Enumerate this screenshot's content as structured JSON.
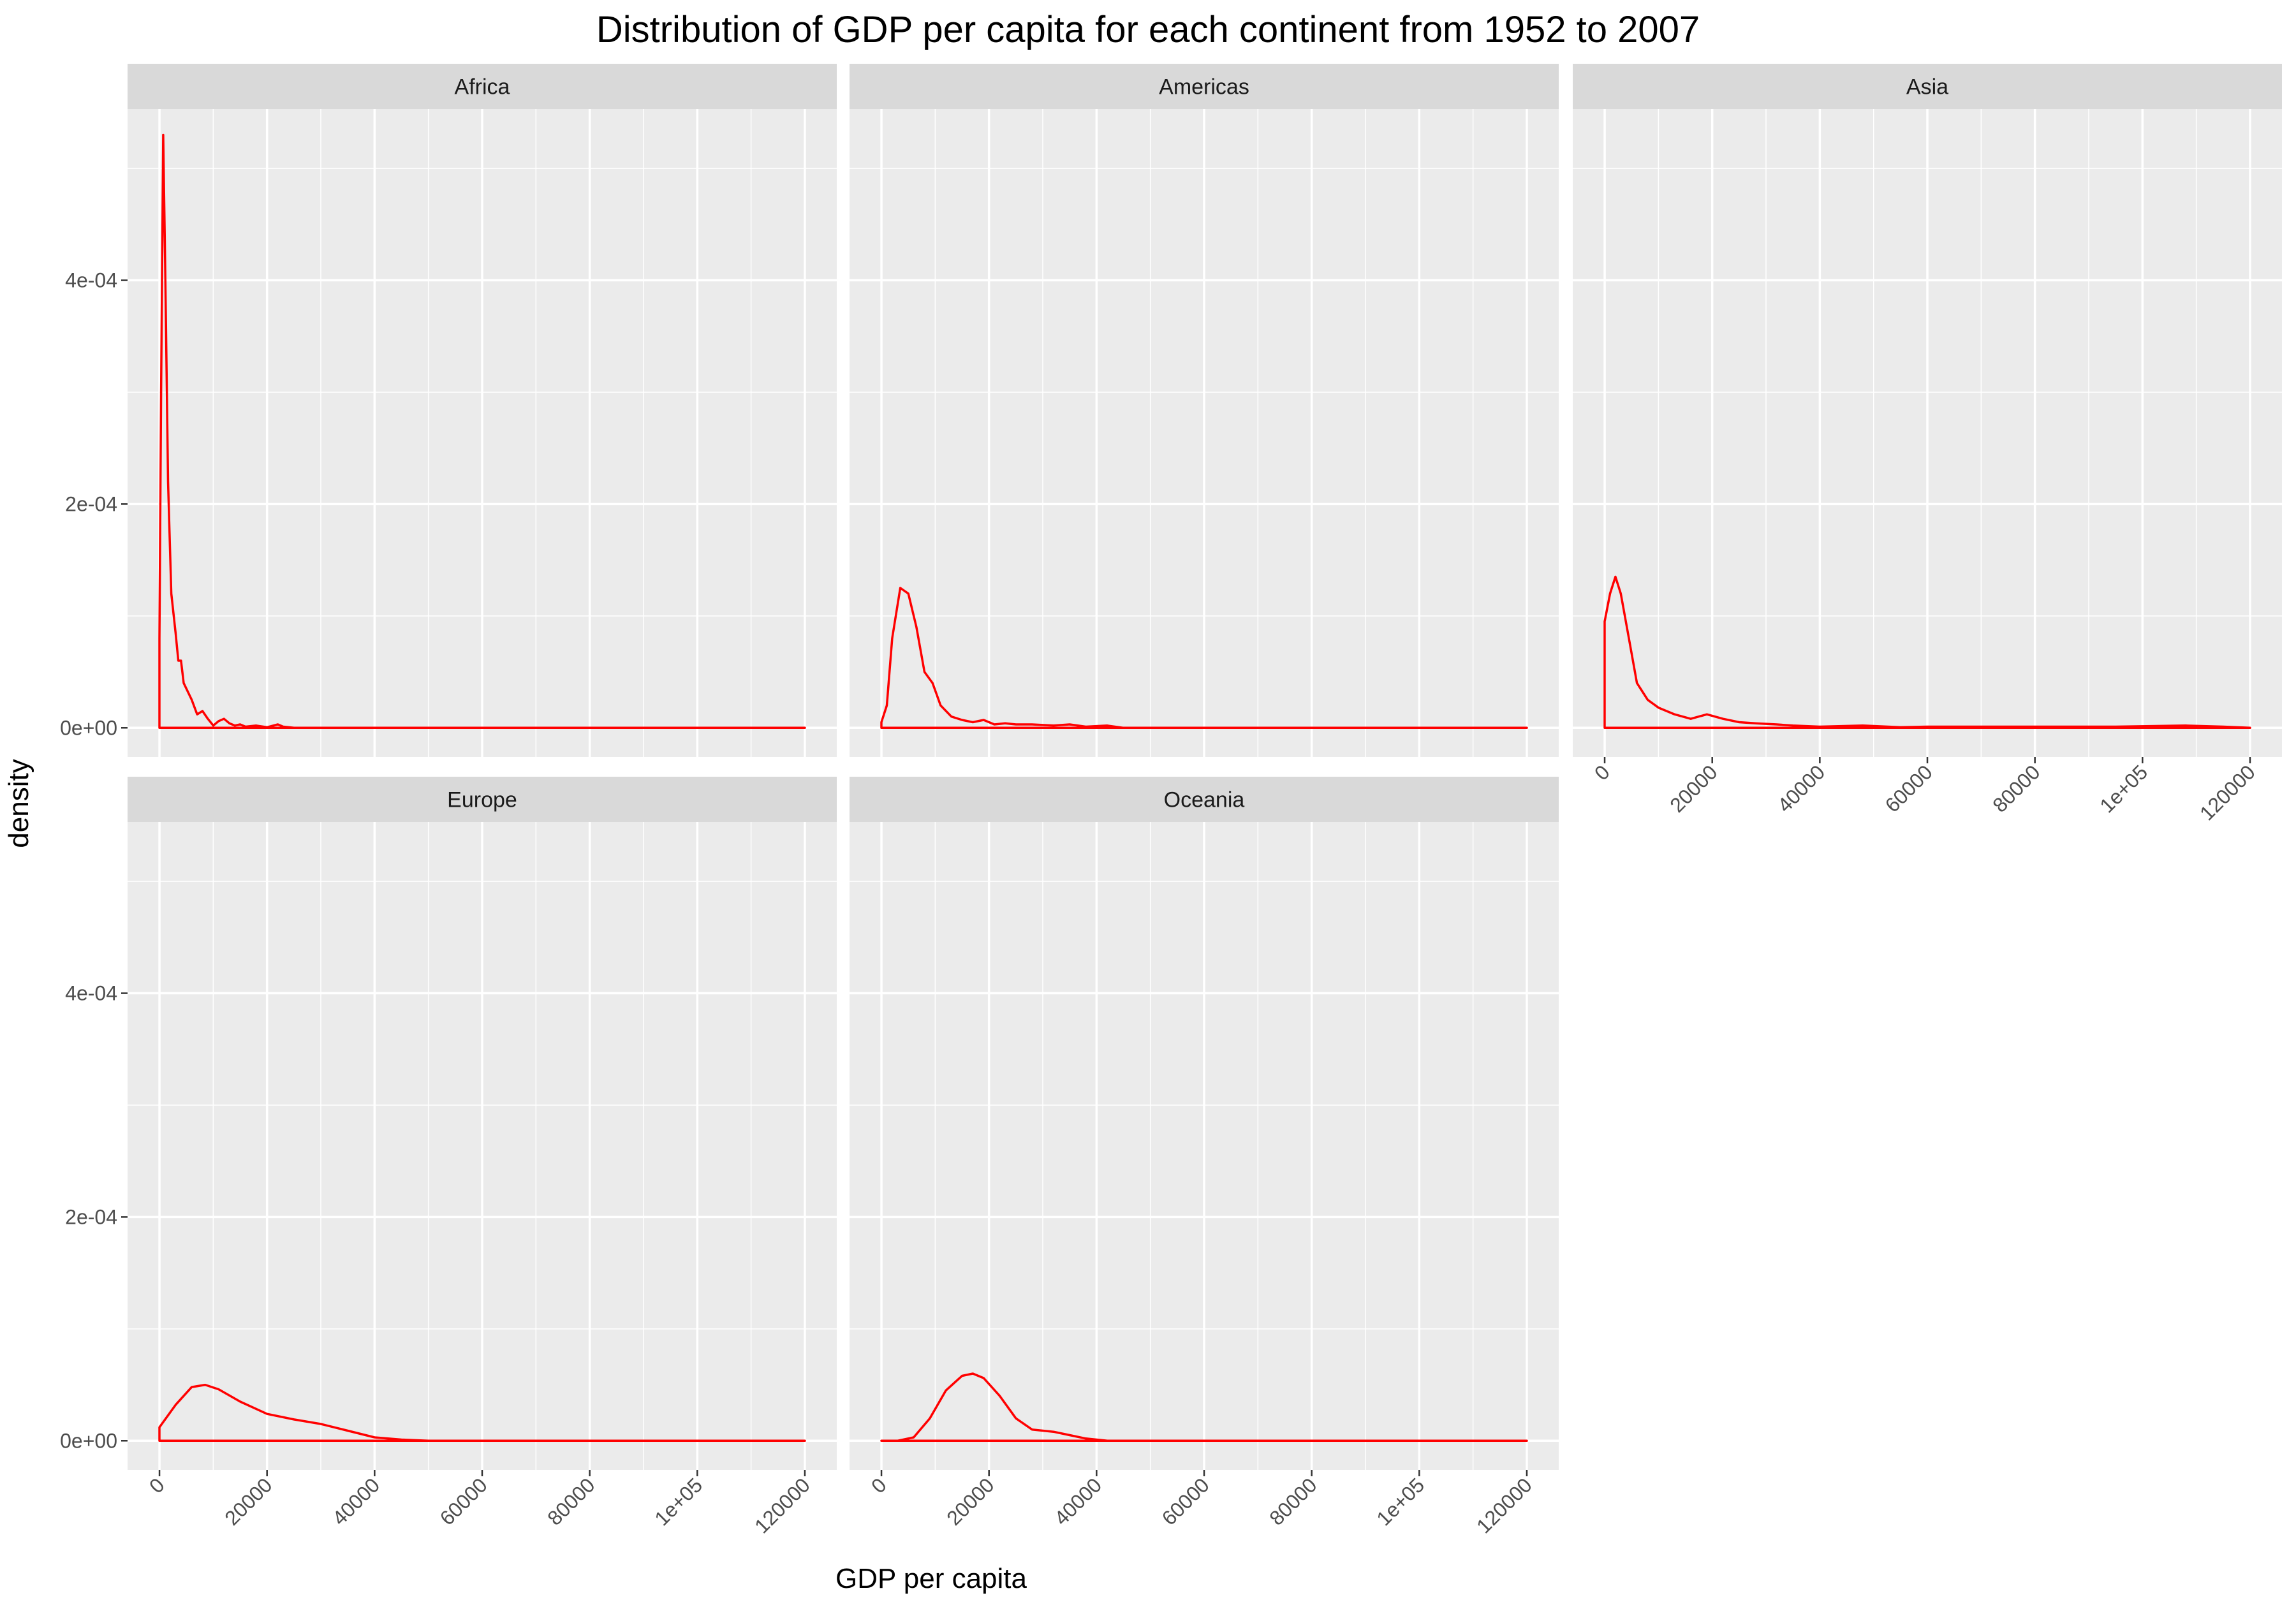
{
  "chart_data": {
    "type": "area",
    "title": "Distribution of GDP per capita for each continent from 1952 to 2007",
    "xlabel": "GDP per capita",
    "ylabel": "density",
    "xlim": [
      0,
      120000
    ],
    "ylim": [
      0,
      0.000527
    ],
    "x_ticks": [
      0,
      20000,
      40000,
      60000,
      80000,
      100000,
      120000
    ],
    "x_tick_labels": [
      "0",
      "20000",
      "40000",
      "60000",
      "80000",
      "1e+05",
      "120000"
    ],
    "y_ticks": [
      0,
      0.0002,
      0.0004
    ],
    "y_tick_labels": [
      "0e+00",
      "2e-04",
      "4e-04"
    ],
    "grid": true,
    "line_color": "#ff0000",
    "panels": [
      {
        "name": "Africa",
        "points": [
          [
            0,
            8e-05
          ],
          [
            300,
            0.0003
          ],
          [
            700,
            0.00053
          ],
          [
            1100,
            0.0004
          ],
          [
            1600,
            0.00022
          ],
          [
            2200,
            0.00012
          ],
          [
            3000,
            8.5e-05
          ],
          [
            3500,
            6e-05
          ],
          [
            4000,
            6e-05
          ],
          [
            4500,
            4e-05
          ],
          [
            6000,
            2.5e-05
          ],
          [
            7000,
            1.2e-05
          ],
          [
            8000,
            1.5e-05
          ],
          [
            9000,
            8e-06
          ],
          [
            10000,
            2e-06
          ],
          [
            11000,
            6e-06
          ],
          [
            12000,
            8e-06
          ],
          [
            13000,
            4e-06
          ],
          [
            14000,
            2e-06
          ],
          [
            15000,
            3e-06
          ],
          [
            16000,
            1e-06
          ],
          [
            18000,
            2e-06
          ],
          [
            20000,
            5e-07
          ],
          [
            22000,
            3e-06
          ],
          [
            23000,
            1e-06
          ],
          [
            25000,
            0.0
          ],
          [
            120000,
            0.0
          ]
        ]
      },
      {
        "name": "Americas",
        "points": [
          [
            0,
            5e-06
          ],
          [
            1000,
            2e-05
          ],
          [
            2000,
            8e-05
          ],
          [
            3500,
            0.000125
          ],
          [
            5000,
            0.00012
          ],
          [
            6500,
            9e-05
          ],
          [
            8000,
            5e-05
          ],
          [
            9500,
            4e-05
          ],
          [
            11000,
            2e-05
          ],
          [
            13000,
            1e-05
          ],
          [
            15000,
            7e-06
          ],
          [
            17000,
            5e-06
          ],
          [
            19000,
            7e-06
          ],
          [
            21000,
            3e-06
          ],
          [
            23000,
            4e-06
          ],
          [
            25000,
            3e-06
          ],
          [
            28000,
            3e-06
          ],
          [
            32000,
            2e-06
          ],
          [
            35000,
            3e-06
          ],
          [
            38000,
            1e-06
          ],
          [
            42000,
            2e-06
          ],
          [
            45000,
            0.0
          ],
          [
            120000,
            0.0
          ]
        ]
      },
      {
        "name": "Asia",
        "points": [
          [
            0,
            9.5e-05
          ],
          [
            1000,
            0.00012
          ],
          [
            2000,
            0.000135
          ],
          [
            3000,
            0.00012
          ],
          [
            4500,
            8e-05
          ],
          [
            6000,
            4e-05
          ],
          [
            8000,
            2.5e-05
          ],
          [
            10000,
            1.8e-05
          ],
          [
            13000,
            1.2e-05
          ],
          [
            16000,
            8e-06
          ],
          [
            19000,
            1.2e-05
          ],
          [
            22000,
            8e-06
          ],
          [
            25000,
            5e-06
          ],
          [
            28000,
            4e-06
          ],
          [
            32000,
            3e-06
          ],
          [
            35000,
            2e-06
          ],
          [
            40000,
            1e-06
          ],
          [
            48000,
            2e-06
          ],
          [
            55000,
            5e-07
          ],
          [
            60000,
            1e-06
          ],
          [
            80000,
            1e-06
          ],
          [
            95000,
            1e-06
          ],
          [
            108000,
            2e-06
          ],
          [
            115000,
            1e-06
          ],
          [
            120000,
            0.0
          ]
        ]
      },
      {
        "name": "Europe",
        "points": [
          [
            0,
            1.2e-05
          ],
          [
            3000,
            3.2e-05
          ],
          [
            6000,
            4.8e-05
          ],
          [
            8500,
            5e-05
          ],
          [
            11000,
            4.6e-05
          ],
          [
            15000,
            3.5e-05
          ],
          [
            20000,
            2.4e-05
          ],
          [
            25000,
            1.9e-05
          ],
          [
            30000,
            1.5e-05
          ],
          [
            35000,
            9e-06
          ],
          [
            40000,
            3e-06
          ],
          [
            45000,
            1e-06
          ],
          [
            50000,
            0.0
          ],
          [
            120000,
            0.0
          ]
        ]
      },
      {
        "name": "Oceania",
        "points": [
          [
            0,
            0.0
          ],
          [
            3000,
            0.0
          ],
          [
            6000,
            3e-06
          ],
          [
            9000,
            2e-05
          ],
          [
            12000,
            4.5e-05
          ],
          [
            15000,
            5.8e-05
          ],
          [
            17000,
            6e-05
          ],
          [
            19000,
            5.6e-05
          ],
          [
            22000,
            4e-05
          ],
          [
            25000,
            2e-05
          ],
          [
            28000,
            1e-05
          ],
          [
            32000,
            8e-06
          ],
          [
            35000,
            5e-06
          ],
          [
            38000,
            2e-06
          ],
          [
            42000,
            0.0
          ],
          [
            120000,
            0.0
          ]
        ]
      }
    ]
  }
}
